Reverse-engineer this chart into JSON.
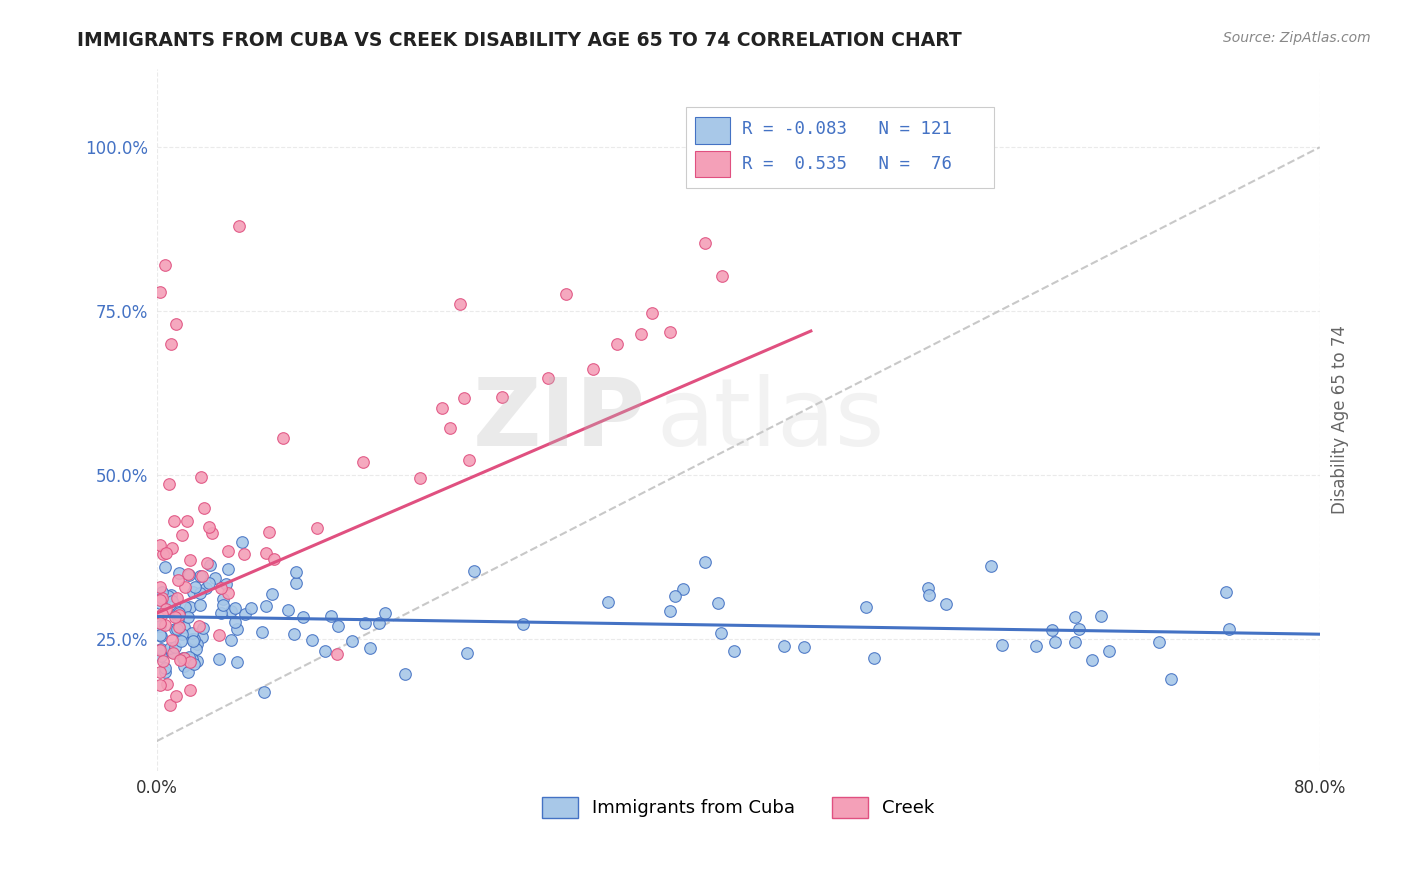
{
  "title": "IMMIGRANTS FROM CUBA VS CREEK DISABILITY AGE 65 TO 74 CORRELATION CHART",
  "source": "Source: ZipAtlas.com",
  "ylabel": "Disability Age 65 to 74",
  "xlim": [
    0.0,
    0.8
  ],
  "ylim": [
    0.05,
    1.12
  ],
  "x_ticks": [
    0.0,
    0.8
  ],
  "x_tick_labels": [
    "0.0%",
    "80.0%"
  ],
  "y_tick_positions": [
    0.25,
    0.5,
    0.75,
    1.0
  ],
  "y_tick_labels": [
    "25.0%",
    "50.0%",
    "75.0%",
    "100.0%"
  ],
  "color_blue": "#A8C8E8",
  "color_pink": "#F4A0B8",
  "color_blue_dark": "#4472C4",
  "color_pink_dark": "#E05080",
  "background_color": "#FFFFFF",
  "grid_color": "#DDDDDD",
  "watermark_color": "#CCCCCC",
  "title_color": "#222222",
  "source_color": "#888888",
  "legend_text_color": "#4472C4",
  "ylabel_color": "#666666",
  "ytick_color": "#4472C4",
  "xtick_color": "#333333"
}
